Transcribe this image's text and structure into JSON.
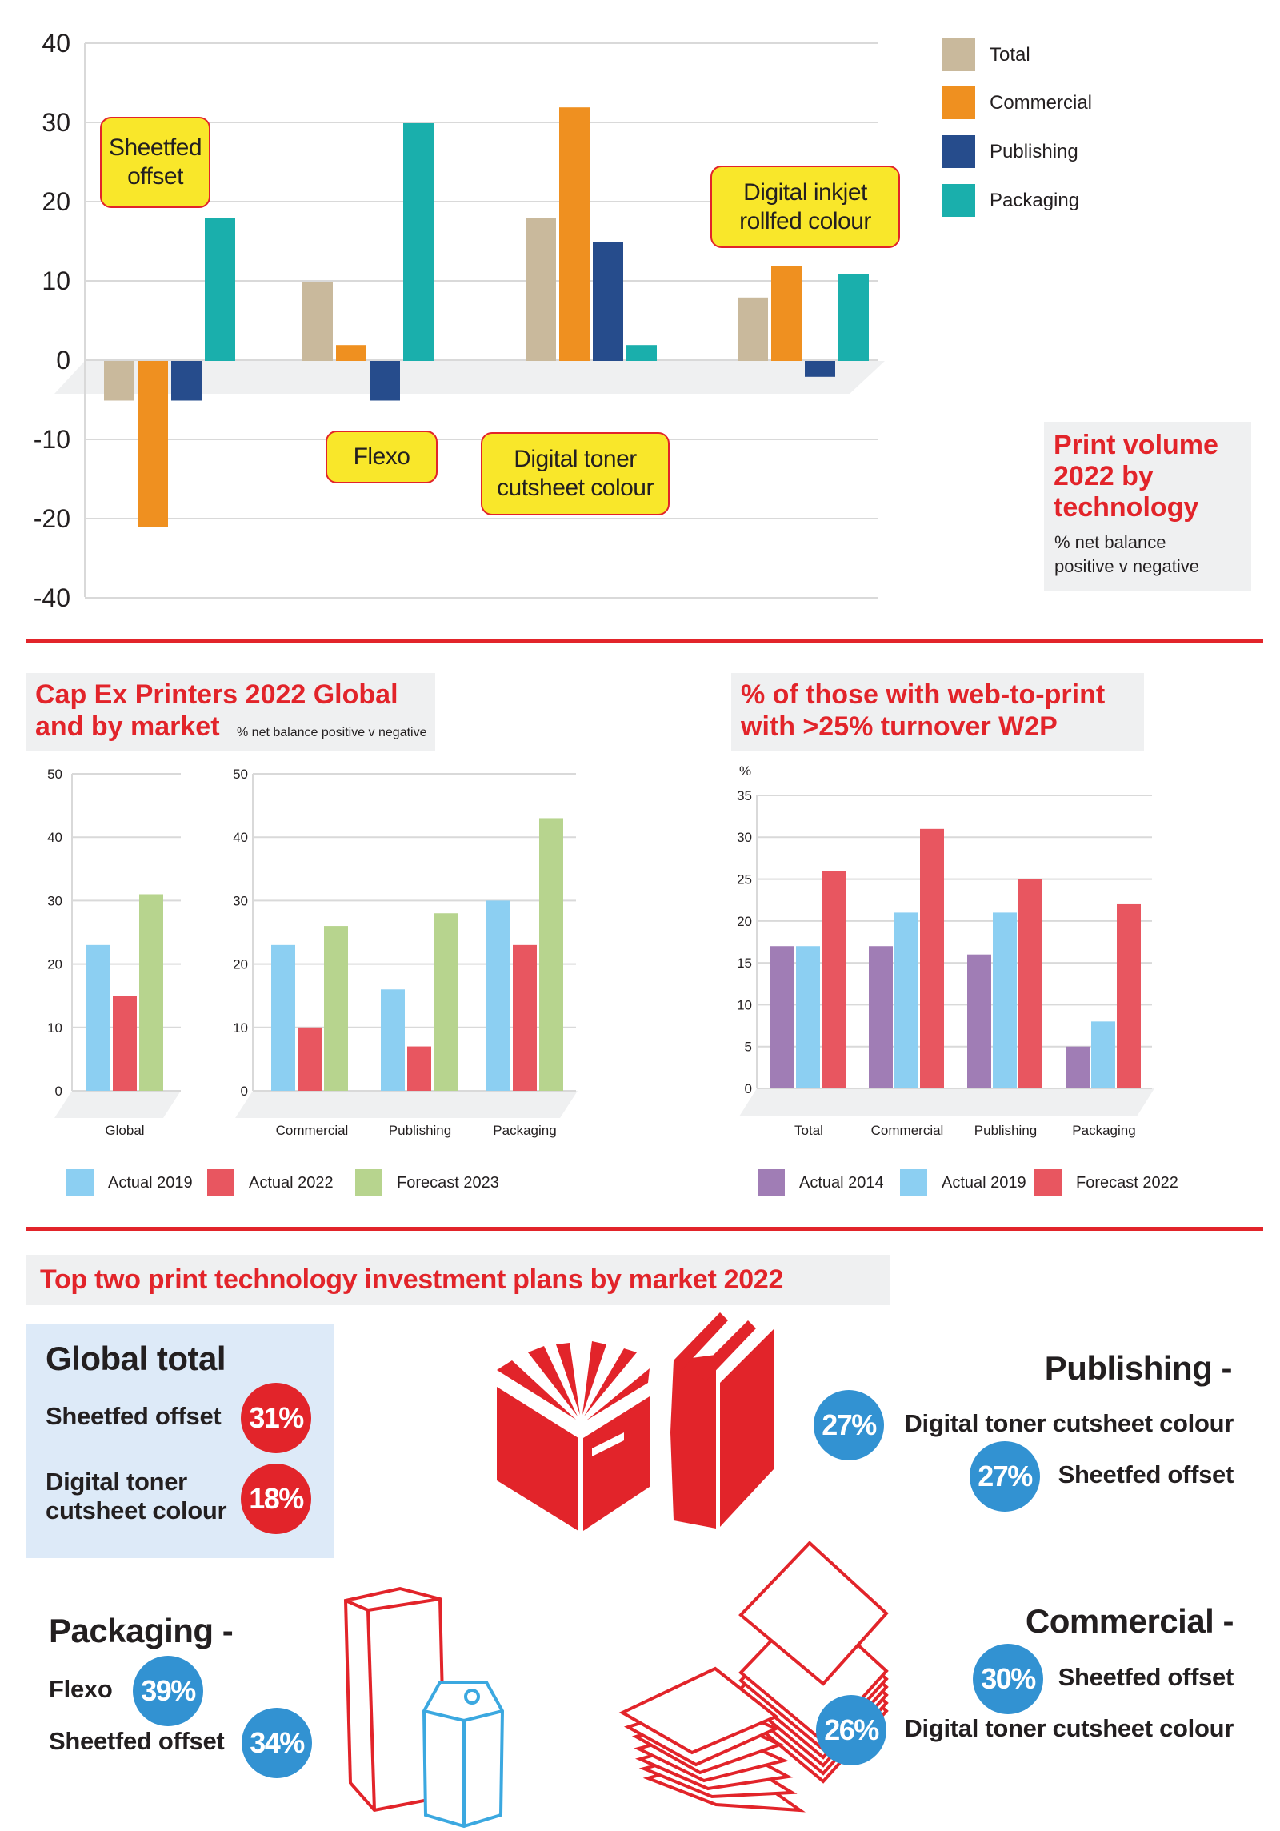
{
  "chart_data": [
    {
      "type": "bar",
      "title": "Print volume 2022 by technology",
      "subtitle": "% net balance positive v negative",
      "categories": [
        "Sheetfed offset",
        "Flexo",
        "Digital toner cutsheet colour",
        "Digital inkjet rollfed colour"
      ],
      "series": [
        {
          "name": "Total",
          "color": "#c9b99c",
          "values": [
            -5,
            10,
            18,
            8
          ]
        },
        {
          "name": "Commercial",
          "color": "#ef9020",
          "values": [
            -21,
            2,
            32,
            12
          ]
        },
        {
          "name": "Publishing",
          "color": "#264c8c",
          "values": [
            -5,
            -5,
            15,
            -2
          ]
        },
        {
          "name": "Packaging",
          "color": "#1aafac",
          "values": [
            18,
            30,
            2,
            11
          ]
        }
      ],
      "yticks": [
        "40",
        "30",
        "20",
        "10",
        "0",
        "-10",
        "-20",
        "-40"
      ],
      "ylim": [
        -40,
        40
      ],
      "grid": true,
      "legend": "top-right"
    },
    {
      "type": "bar",
      "title": "Cap Ex Printers 2022 Global and by market",
      "subtitle": "% net balance positive v negative",
      "categories": [
        "Global",
        "Commercial",
        "Publishing",
        "Packaging"
      ],
      "series": [
        {
          "name": "Actual 2019",
          "color": "#8ccff2",
          "values": [
            23,
            23,
            16,
            30
          ]
        },
        {
          "name": "Actual 2022",
          "color": "#e85660",
          "values": [
            15,
            10,
            7,
            23
          ]
        },
        {
          "name": "Forecast 2023",
          "color": "#b7d48e",
          "values": [
            31,
            26,
            28,
            43
          ]
        }
      ],
      "yticks": [
        "0",
        "10",
        "20",
        "30",
        "40",
        "50"
      ],
      "ylim": [
        0,
        50
      ],
      "grid": true,
      "legend": "bottom"
    },
    {
      "type": "bar",
      "title": "% of those with web-to-print with >25% turnover W2P",
      "ylabel": "%",
      "categories": [
        "Total",
        "Commercial",
        "Publishing",
        "Packaging"
      ],
      "series": [
        {
          "name": "Actual 2014",
          "color": "#a07db5",
          "values": [
            17,
            17,
            16,
            5
          ]
        },
        {
          "name": "Actual 2019",
          "color": "#8ccff2",
          "values": [
            17,
            21,
            21,
            8
          ]
        },
        {
          "name": "Forecast 2022",
          "color": "#e85660",
          "values": [
            26,
            31,
            25,
            22
          ]
        }
      ],
      "yticks": [
        "0",
        "5",
        "10",
        "15",
        "20",
        "25",
        "30",
        "35"
      ],
      "ylim": [
        0,
        35
      ],
      "grid": true,
      "legend": "bottom"
    }
  ],
  "chart1": {
    "callouts": {
      "sheetfed_1": "Sheetfed",
      "sheetfed_2": "offset",
      "flexo": "Flexo",
      "toner_1": "Digital toner",
      "toner_2": "cutsheet colour",
      "inkjet_1": "Digital inkjet",
      "inkjet_2": "rollfed colour"
    },
    "title_lines": [
      "Print volume",
      "2022 by",
      "technology"
    ],
    "subtitle_lines": [
      "% net balance",
      "positive v negative"
    ]
  },
  "chart2": {
    "title_1": "Cap Ex Printers 2022 Global",
    "title_2": "and by market",
    "subtitle": "% net balance positive v negative"
  },
  "chart3": {
    "title_1": "% of those with web-to-print",
    "title_2": "with >25% turnover W2P"
  },
  "plans": {
    "title": "Top two print technology investment plans by market 2022",
    "global": {
      "title": "Global total",
      "items": [
        {
          "label": "Sheetfed offset",
          "pct": "31%"
        },
        {
          "label_1": "Digital toner",
          "label_2": "cutsheet colour",
          "pct": "18%"
        }
      ]
    },
    "publishing": {
      "title": "Publishing -",
      "items": [
        {
          "label": "Digital toner cutsheet colour",
          "pct": "27%"
        },
        {
          "label": "Sheetfed offset",
          "pct": "27%"
        }
      ]
    },
    "commercial": {
      "title": "Commercial -",
      "items": [
        {
          "label": "Sheetfed offset",
          "pct": "30%"
        },
        {
          "label": "Digital toner cutsheet colour",
          "pct": "26%"
        }
      ]
    },
    "packaging": {
      "title": "Packaging -",
      "items": [
        {
          "label": "Flexo",
          "pct": "39%"
        },
        {
          "label": "Sheetfed offset",
          "pct": "34%"
        }
      ]
    },
    "icons": [
      "books-icon",
      "paper-stack-icon",
      "drink-carton-icon"
    ]
  },
  "colors": {
    "accent_red": "#e2242a",
    "accent_blue": "#3292d2",
    "callout_yellow": "#f9e72a",
    "panel_grey": "#eff0f1",
    "panel_blue": "#ddeaf8"
  }
}
